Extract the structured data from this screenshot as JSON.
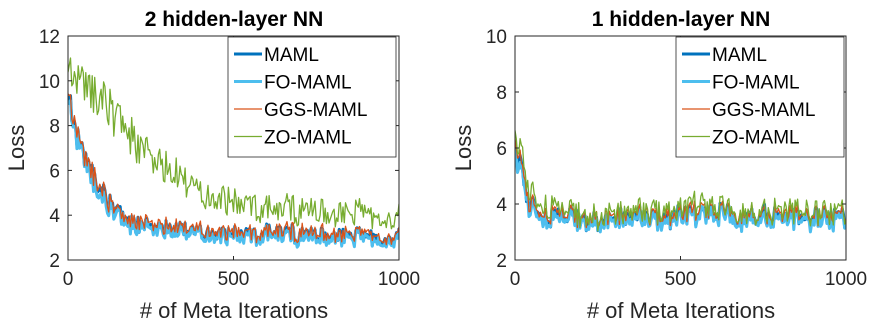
{
  "chart_data": [
    {
      "type": "line",
      "title": "2 hidden-layer NN",
      "xlabel": "# of Meta Iterations",
      "ylabel": "Loss",
      "xlim": [
        0,
        1000
      ],
      "ylim": [
        2,
        12
      ],
      "xticks": [
        "0",
        "500",
        "1000"
      ],
      "yticks": [
        "2",
        "4",
        "6",
        "8",
        "10",
        "12"
      ],
      "grid": false,
      "legend_position": "top-right",
      "x": [
        0,
        40,
        80,
        120,
        160,
        200,
        250,
        300,
        350,
        400,
        450,
        500,
        550,
        600,
        650,
        700,
        750,
        800,
        850,
        900,
        950,
        1000
      ],
      "series": [
        {
          "name": "MAML",
          "color": "#0072BD",
          "line_width": 3,
          "values": [
            9.3,
            6.9,
            5.6,
            4.6,
            4.0,
            3.6,
            3.5,
            3.4,
            3.3,
            3.3,
            3.2,
            3.2,
            3.1,
            3.2,
            3.2,
            3.1,
            3.1,
            3.1,
            3.1,
            3.1,
            3.0,
            3.1
          ]
        },
        {
          "name": "FO-MAML",
          "color": "#4DBEEE",
          "line_width": 3,
          "values": [
            9.1,
            6.8,
            5.4,
            4.4,
            3.9,
            3.5,
            3.4,
            3.3,
            3.2,
            3.2,
            3.1,
            3.1,
            3.0,
            3.1,
            3.1,
            3.0,
            3.0,
            3.0,
            3.0,
            3.0,
            2.9,
            3.0
          ]
        },
        {
          "name": "GGS-MAML",
          "color": "#D95319",
          "line_width": 1.3,
          "values": [
            9.4,
            7.0,
            5.7,
            4.7,
            4.1,
            3.7,
            3.6,
            3.5,
            3.4,
            3.4,
            3.3,
            3.3,
            3.2,
            3.3,
            3.3,
            3.2,
            3.2,
            3.2,
            3.2,
            3.2,
            3.1,
            3.2
          ]
        },
        {
          "name": "ZO-MAML",
          "color": "#77AC30",
          "line_width": 1.3,
          "values": [
            10.4,
            10.0,
            9.5,
            9.0,
            8.2,
            7.4,
            6.6,
            6.0,
            5.5,
            5.1,
            4.8,
            4.6,
            4.4,
            4.3,
            4.3,
            4.2,
            4.2,
            4.1,
            4.1,
            4.1,
            4.0,
            4.1
          ]
        }
      ]
    },
    {
      "type": "line",
      "title": "1 hidden-layer NN",
      "xlabel": "# of Meta Iterations",
      "ylabel": "Loss",
      "xlim": [
        0,
        1000
      ],
      "ylim": [
        2,
        10
      ],
      "xticks": [
        "0",
        "500",
        "1000"
      ],
      "yticks": [
        "2",
        "4",
        "6",
        "8",
        "10"
      ],
      "grid": false,
      "legend_position": "top-right",
      "x": [
        0,
        40,
        80,
        120,
        160,
        200,
        250,
        300,
        350,
        400,
        450,
        500,
        550,
        600,
        650,
        700,
        750,
        800,
        850,
        900,
        950,
        1000
      ],
      "series": [
        {
          "name": "MAML",
          "color": "#0072BD",
          "line_width": 3,
          "values": [
            6.2,
            4.1,
            3.6,
            3.5,
            3.5,
            3.5,
            3.4,
            3.5,
            3.5,
            3.5,
            3.5,
            3.6,
            3.6,
            3.7,
            3.6,
            3.5,
            3.6,
            3.5,
            3.6,
            3.5,
            3.5,
            3.5
          ]
        },
        {
          "name": "FO-MAML",
          "color": "#4DBEEE",
          "line_width": 3,
          "values": [
            6.0,
            4.0,
            3.5,
            3.4,
            3.4,
            3.4,
            3.3,
            3.4,
            3.4,
            3.4,
            3.4,
            3.5,
            3.5,
            3.6,
            3.5,
            3.4,
            3.5,
            3.4,
            3.5,
            3.4,
            3.4,
            3.4
          ]
        },
        {
          "name": "GGS-MAML",
          "color": "#D95319",
          "line_width": 1.3,
          "values": [
            6.3,
            4.2,
            3.7,
            3.6,
            3.6,
            3.6,
            3.5,
            3.6,
            3.6,
            3.6,
            3.6,
            3.7,
            3.7,
            3.8,
            3.7,
            3.6,
            3.7,
            3.6,
            3.7,
            3.6,
            3.6,
            3.6
          ]
        },
        {
          "name": "ZO-MAML",
          "color": "#77AC30",
          "line_width": 1.3,
          "values": [
            6.6,
            4.6,
            4.0,
            3.8,
            3.7,
            3.7,
            3.6,
            3.7,
            3.7,
            3.7,
            3.8,
            3.8,
            3.9,
            3.9,
            3.8,
            3.7,
            3.8,
            3.7,
            3.8,
            3.7,
            3.7,
            3.7
          ]
        }
      ]
    }
  ]
}
